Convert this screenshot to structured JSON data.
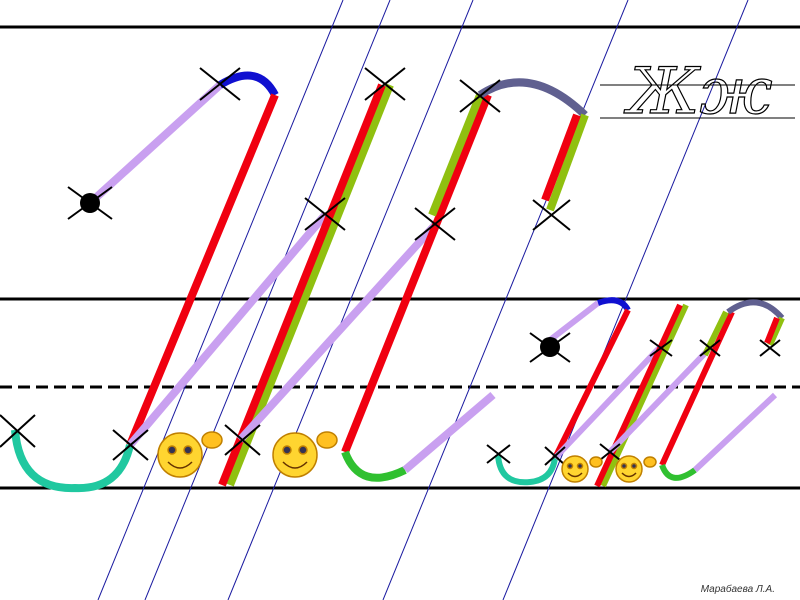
{
  "sample": "Жж",
  "author": "Марабаева Л.А."
}
